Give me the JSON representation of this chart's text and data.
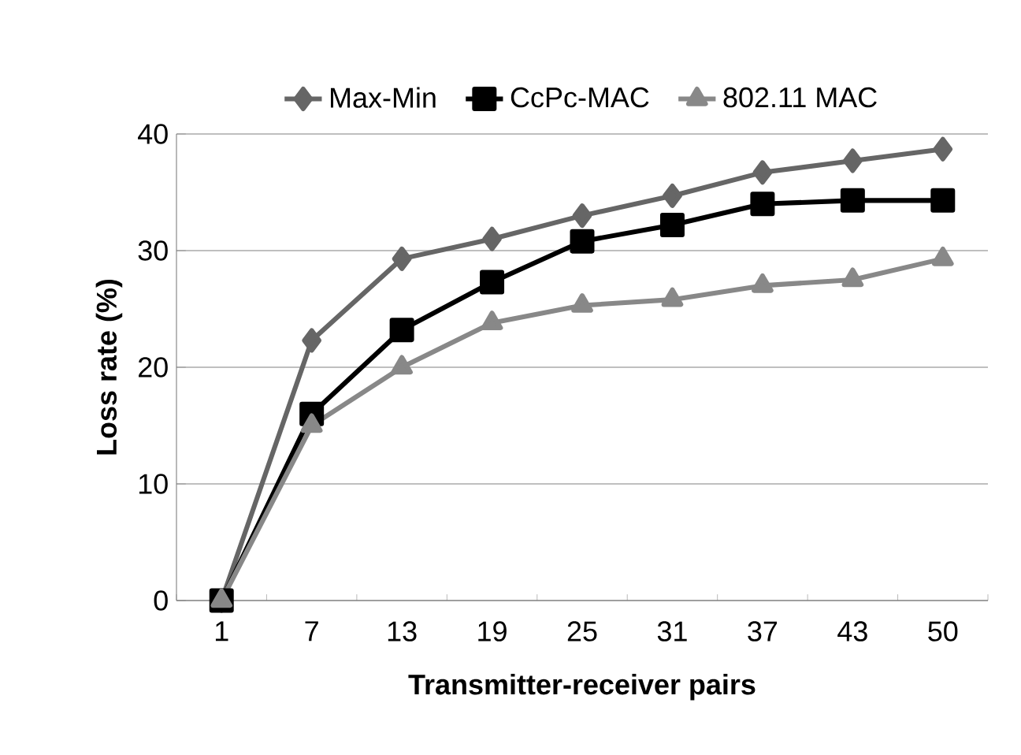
{
  "chart_data": {
    "type": "line",
    "xlabel": "Transmitter-receiver pairs",
    "ylabel": "Loss rate (%)",
    "categories": [
      "1",
      "7",
      "13",
      "19",
      "25",
      "31",
      "37",
      "43",
      "50"
    ],
    "series": [
      {
        "name": "Max-Min",
        "color": "#666666",
        "marker": "diamond",
        "values": [
          0,
          22.3,
          29.3,
          31,
          33,
          34.7,
          36.7,
          37.7,
          38.7
        ]
      },
      {
        "name": "CcPc-MAC",
        "color": "#000000",
        "marker": "square",
        "values": [
          0,
          16,
          23.2,
          27.3,
          30.8,
          32.2,
          34,
          34.3,
          34.3
        ]
      },
      {
        "name": "802.11 MAC",
        "color": "#888888",
        "marker": "triangle",
        "values": [
          0,
          15,
          20,
          23.8,
          25.3,
          25.8,
          27,
          27.5,
          29.3
        ]
      }
    ],
    "ylim": [
      0,
      40
    ],
    "yticks": [
      0,
      10,
      20,
      30,
      40
    ],
    "grid": "y",
    "legend": "top",
    "line_style": "solid"
  }
}
